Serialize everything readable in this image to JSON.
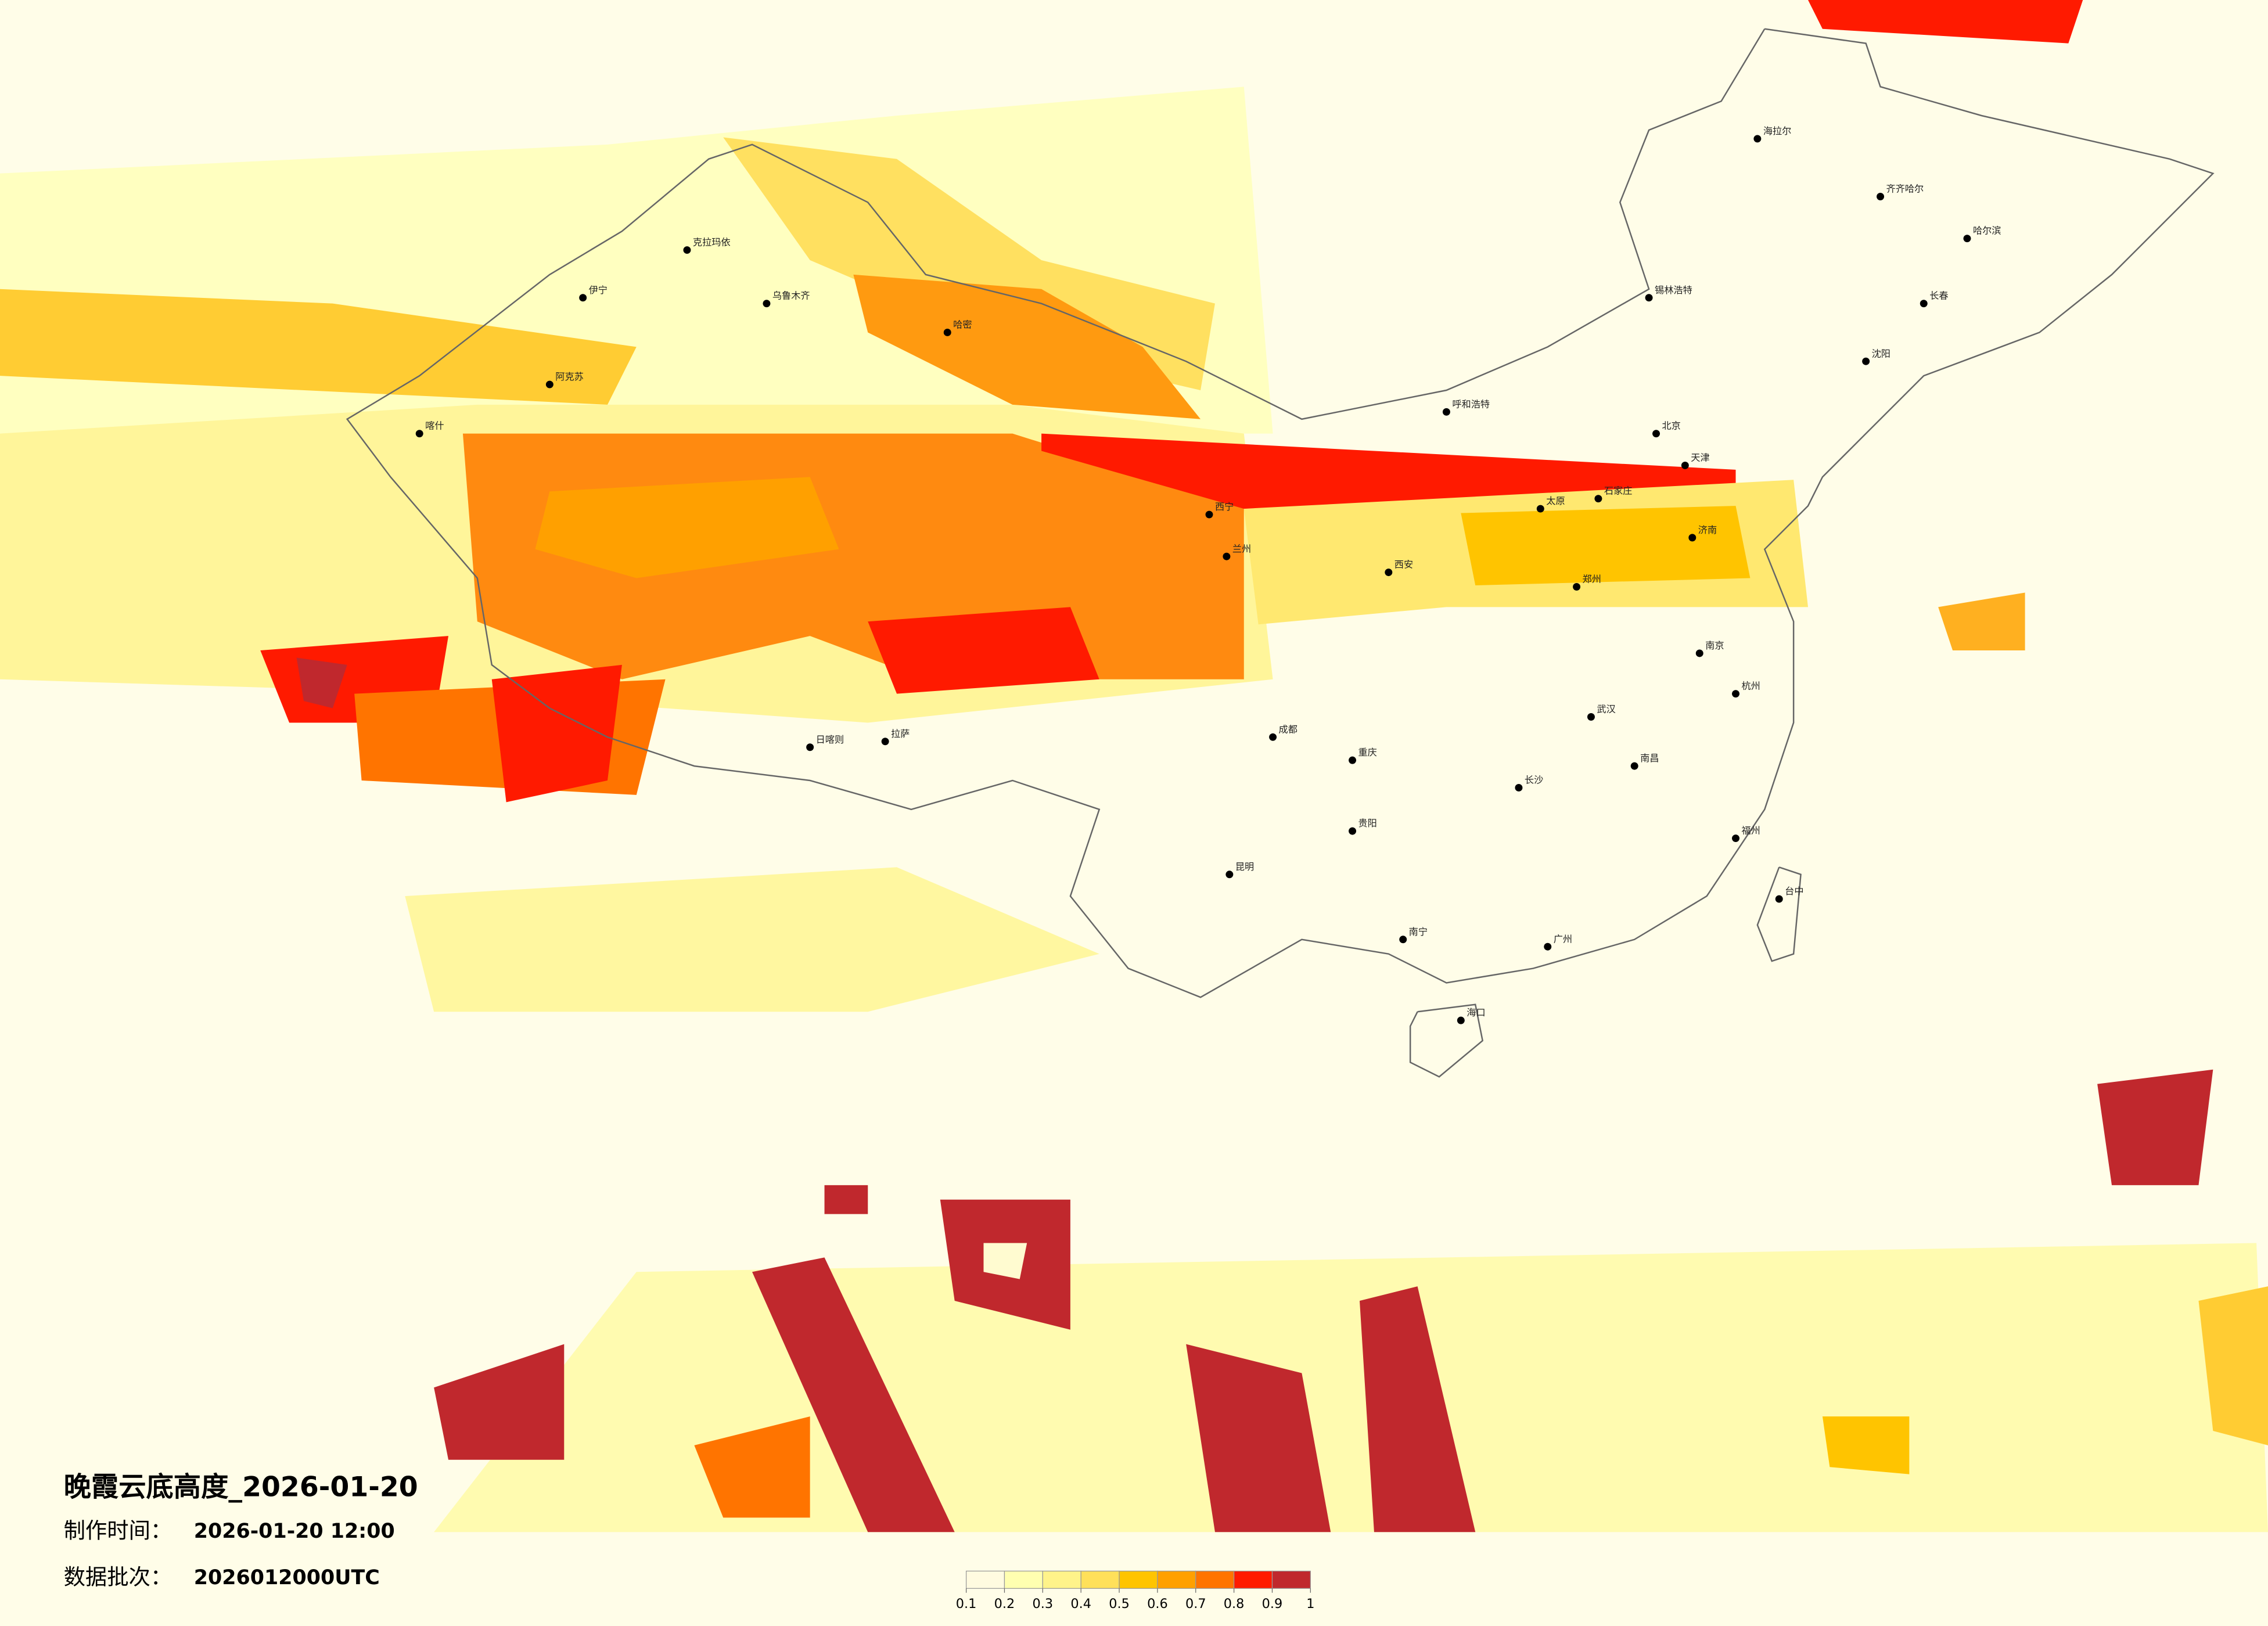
{
  "title": "晚霞云底高度_2026-01-20",
  "production_time": {
    "label": "制作时间：",
    "value": "2026-01-20 12:00"
  },
  "data_batch": {
    "label": "数据批次：",
    "value": "2026012000UTC"
  },
  "colorbar": {
    "ticks": [
      0.1,
      0.2,
      0.3,
      0.4,
      0.5,
      0.6,
      0.7,
      0.8,
      0.9,
      1
    ],
    "colors": [
      "#fffbe0",
      "#ffffb0",
      "#fff38a",
      "#ffe05a",
      "#ffc400",
      "#ffa000",
      "#ff7400",
      "#ff1a00",
      "#c0282d"
    ]
  },
  "cities": [
    {
      "name": "喀什"
    },
    {
      "name": "乌鲁木齐"
    },
    {
      "name": "克拉玛依"
    },
    {
      "name": "伊宁"
    },
    {
      "name": "阿克苏"
    },
    {
      "name": "哈密"
    },
    {
      "name": "拉萨"
    },
    {
      "name": "日喀则"
    },
    {
      "name": "西宁"
    },
    {
      "name": "兰州"
    },
    {
      "name": "呼和浩特"
    },
    {
      "name": "北京"
    },
    {
      "name": "天津"
    },
    {
      "name": "石家庄"
    },
    {
      "name": "太原"
    },
    {
      "name": "济南"
    },
    {
      "name": "郑州"
    },
    {
      "name": "西安"
    },
    {
      "name": "成都"
    },
    {
      "name": "重庆"
    },
    {
      "name": "贵阳"
    },
    {
      "name": "昆明"
    },
    {
      "name": "南宁"
    },
    {
      "name": "广州"
    },
    {
      "name": "海口"
    },
    {
      "name": "长沙"
    },
    {
      "name": "武汉"
    },
    {
      "name": "南昌"
    },
    {
      "name": "杭州"
    },
    {
      "name": "南京"
    },
    {
      "name": "福州"
    },
    {
      "name": "台中"
    },
    {
      "name": "哈尔滨"
    },
    {
      "name": "长春"
    },
    {
      "name": "沈阳"
    },
    {
      "name": "海拉尔"
    },
    {
      "name": "齐齐哈尔"
    },
    {
      "name": "锡林浩特"
    }
  ]
}
